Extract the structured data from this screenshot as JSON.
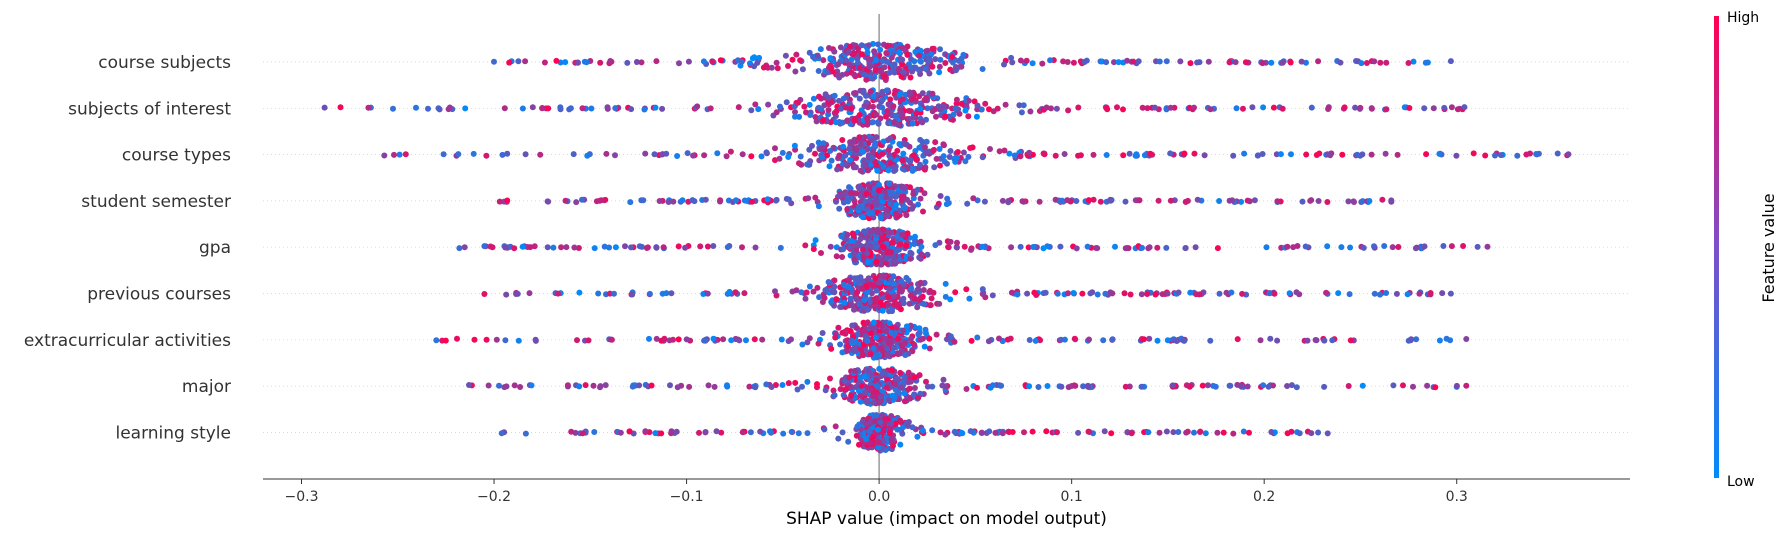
{
  "chart_data": {
    "type": "scatter",
    "subtype": "shap-beeswarm",
    "title": "",
    "xlabel": "SHAP value (impact on model output)",
    "ylabel": "",
    "xlim": [
      -0.32,
      0.39
    ],
    "xticks": [
      -0.3,
      -0.2,
      -0.1,
      0.0,
      0.1,
      0.2,
      0.3
    ],
    "xtick_labels": [
      "−0.3",
      "−0.2",
      "−0.1",
      "0.0",
      "0.1",
      "0.2",
      "0.3"
    ],
    "grid": false,
    "features": [
      {
        "name": "course subjects",
        "min": -0.2,
        "max": 0.297,
        "core_halfwidth": 0.04,
        "spread": 0.09
      },
      {
        "name": "subjects of interest",
        "min": -0.288,
        "max": 0.304,
        "core_halfwidth": 0.045,
        "spread": 0.1
      },
      {
        "name": "course types",
        "min": -0.257,
        "max": 0.358,
        "core_halfwidth": 0.04,
        "spread": 0.11
      },
      {
        "name": "student semester",
        "min": -0.197,
        "max": 0.266,
        "core_halfwidth": 0.02,
        "spread": 0.09
      },
      {
        "name": "gpa",
        "min": -0.218,
        "max": 0.316,
        "core_halfwidth": 0.02,
        "spread": 0.1
      },
      {
        "name": "previous courses",
        "min": -0.205,
        "max": 0.297,
        "core_halfwidth": 0.03,
        "spread": 0.09
      },
      {
        "name": "extracurricular activities",
        "min": -0.23,
        "max": 0.305,
        "core_halfwidth": 0.02,
        "spread": 0.1
      },
      {
        "name": "major",
        "min": -0.213,
        "max": 0.305,
        "core_halfwidth": 0.02,
        "spread": 0.08
      },
      {
        "name": "learning style",
        "min": -0.196,
        "max": 0.233,
        "core_halfwidth": 0.01,
        "spread": 0.07
      }
    ],
    "colorbar": {
      "title": "Feature value",
      "high_label": "High",
      "low_label": "Low",
      "high_color": "#ff0052",
      "low_color": "#008bfb"
    },
    "zero_line": 0.0
  }
}
